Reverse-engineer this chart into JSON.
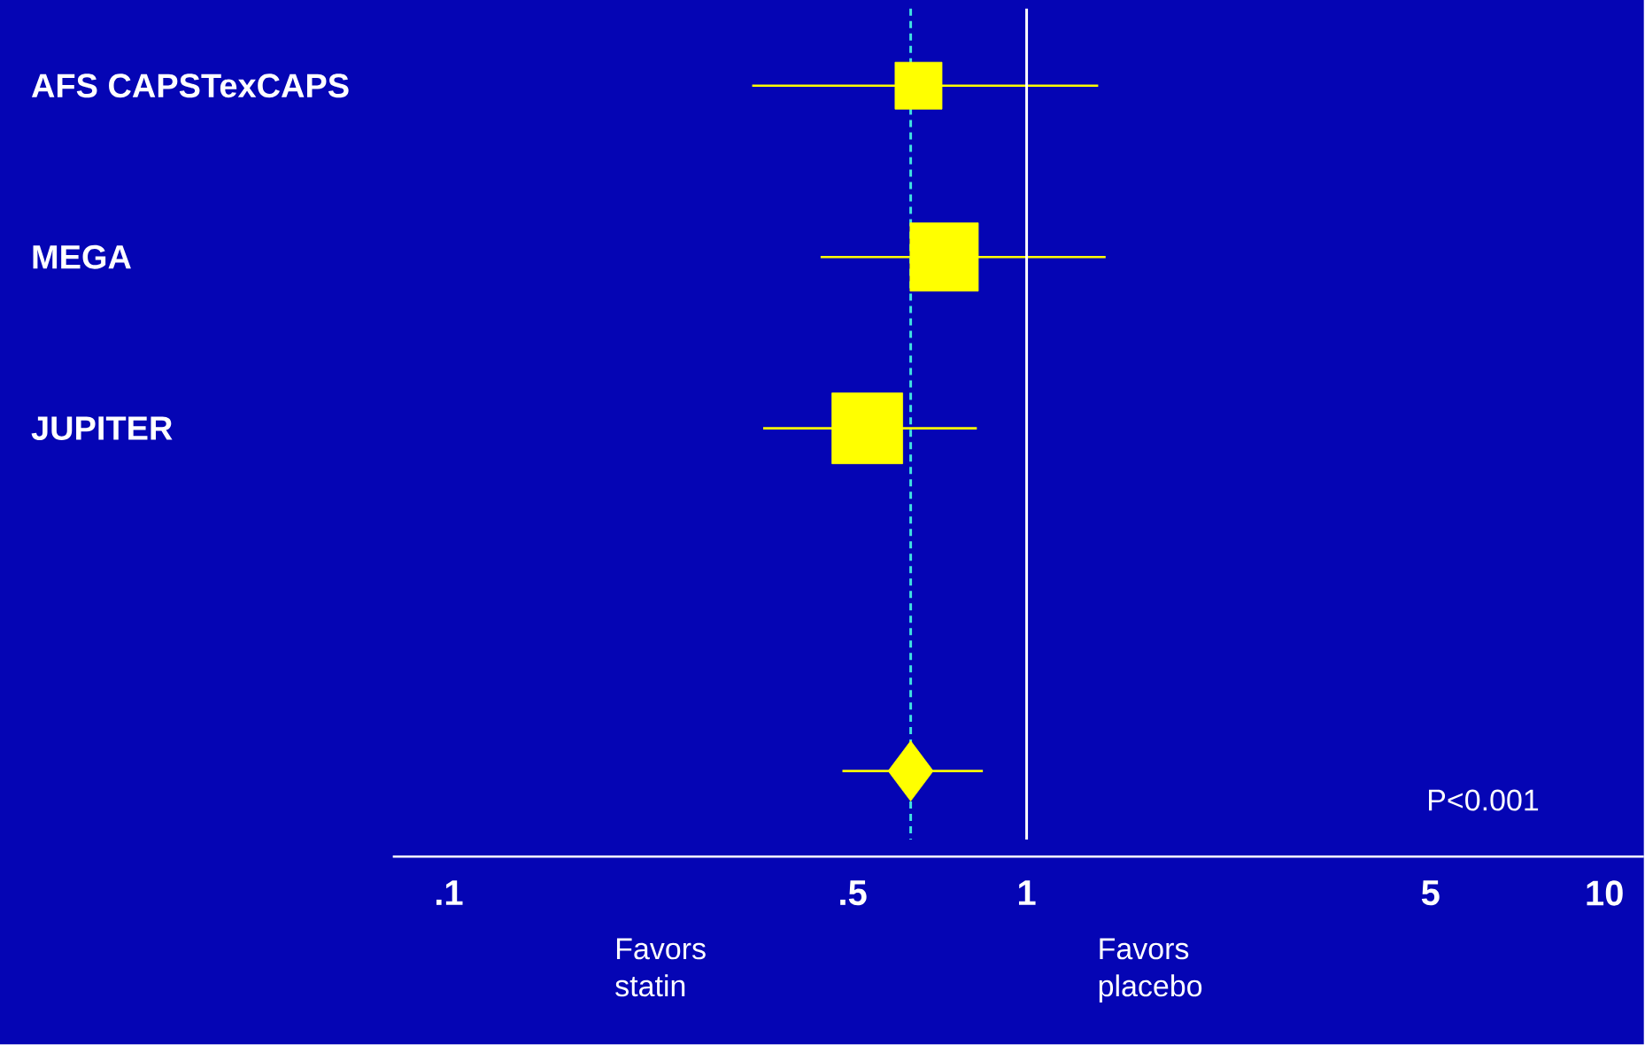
{
  "chart_data": {
    "type": "scatter",
    "orientation": "horizontal",
    "categories": [
      "AFS CAPSTexCAPS",
      "MEGA",
      "JUPITER",
      null,
      null
    ],
    "series": [
      {
        "color": "#ffff00",
        "marker": "square",
        "values": [
          0.65,
          0.72,
          0.53,
          null,
          null
        ],
        "errors": [
          [
            0.335,
            1.33
          ],
          [
            0.44,
            1.37
          ],
          [
            0.35,
            0.82
          ],
          null,
          null
        ],
        "sizes": [
          0.44,
          0.93,
          1,
          null,
          null
        ]
      },
      {
        "color": "#ffff00",
        "marker": "diamond",
        "values": [
          null,
          null,
          null,
          null,
          0.63
        ],
        "errors": [
          null,
          null,
          null,
          null,
          [
            0.48,
            0.84
          ]
        ]
      }
    ],
    "log": "x",
    "xlim": [
      0.08,
      11.7
    ],
    "xticks": [
      {
        "value": 0.1,
        "label": ".1"
      },
      {
        "value": 0.5,
        "label": ".5"
      },
      1,
      5,
      10
    ],
    "ref_lines": [
      {
        "axis": "x",
        "value": 1,
        "color": "#ffffff",
        "line_style": "solid"
      },
      {
        "axis": "x",
        "value": 0.63,
        "color": "#40e0e0",
        "line_style": "dashed"
      }
    ],
    "annotations": [
      "P<0.001",
      "Favors statin",
      "Favors placebo"
    ]
  }
}
